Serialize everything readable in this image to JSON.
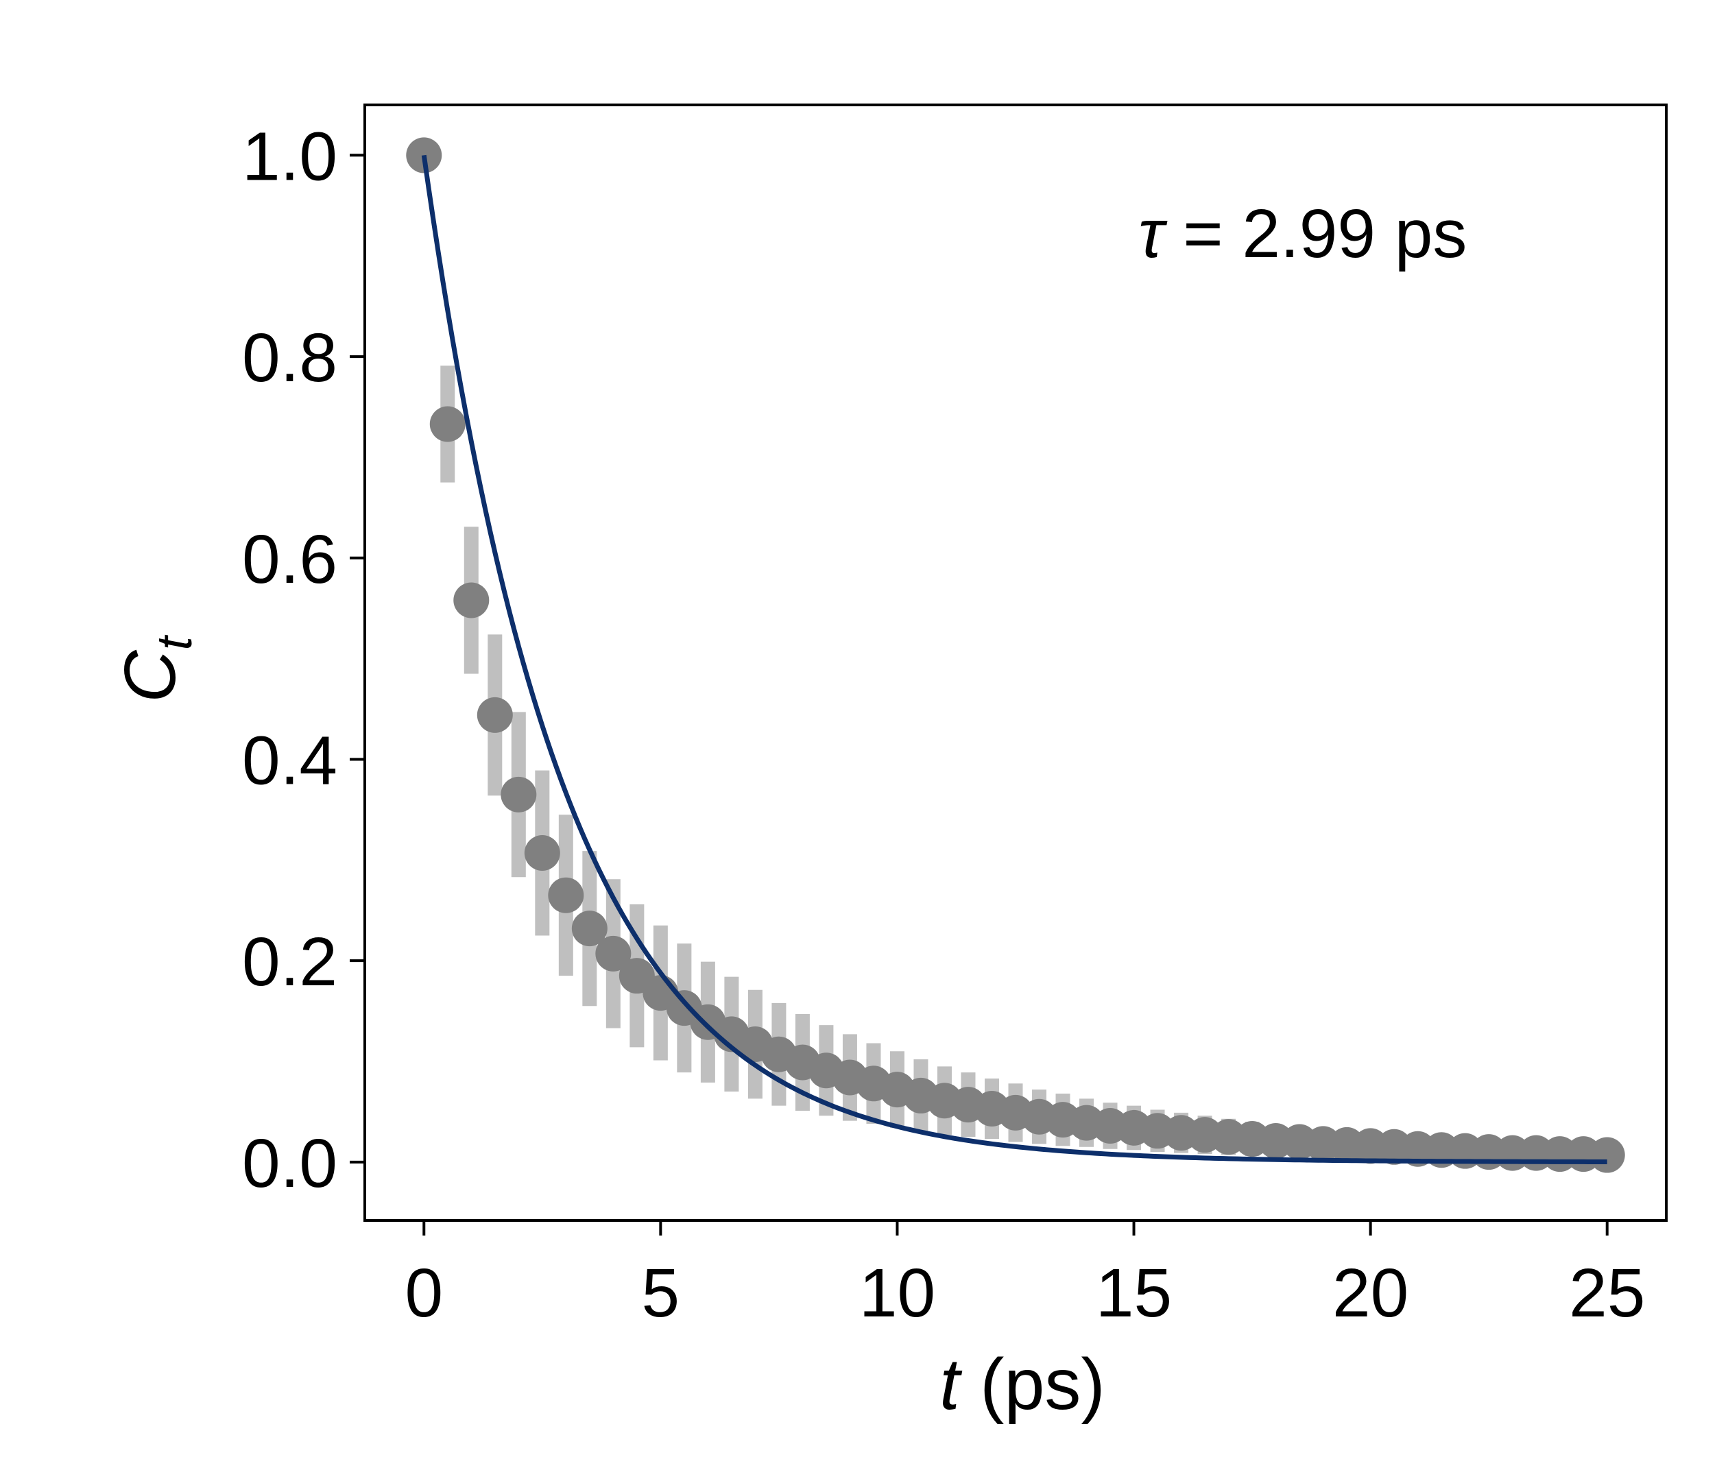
{
  "chart_data": {
    "type": "scatter",
    "xlabel": {
      "var": "t",
      "unit": " (ps)"
    },
    "ylabel": {
      "base": "C",
      "sub": "t"
    },
    "annotation": {
      "symbol": "τ",
      "text": " = 2.99 ps"
    },
    "xlim": [
      -1.25,
      26.25
    ],
    "ylim": [
      -0.058,
      1.05
    ],
    "xticks": [
      0,
      5,
      10,
      15,
      20,
      25
    ],
    "yticks": [
      0.0,
      0.2,
      0.4,
      0.6,
      0.8,
      1.0
    ],
    "xtick_labels": [
      "0",
      "5",
      "10",
      "15",
      "20",
      "25"
    ],
    "ytick_labels": [
      "0.0",
      "0.2",
      "0.4",
      "0.6",
      "0.8",
      "1.0"
    ],
    "grid": false,
    "points": {
      "x": [
        0,
        0.5,
        1,
        1.5,
        2,
        2.5,
        3,
        3.5,
        4,
        4.5,
        5,
        5.5,
        6,
        6.5,
        7,
        7.5,
        8,
        8.5,
        9,
        9.5,
        10,
        10.5,
        11,
        11.5,
        12,
        12.5,
        13,
        13.5,
        14,
        14.5,
        15,
        15.5,
        16,
        16.5,
        17,
        17.5,
        18,
        18.5,
        19,
        19.5,
        20,
        20.5,
        21,
        21.5,
        22,
        22.5,
        23,
        23.5,
        24,
        24.5,
        25
      ],
      "y": [
        1.0,
        0.733,
        0.558,
        0.444,
        0.365,
        0.307,
        0.265,
        0.232,
        0.207,
        0.185,
        0.168,
        0.153,
        0.139,
        0.127,
        0.117,
        0.107,
        0.099,
        0.091,
        0.084,
        0.078,
        0.072,
        0.066,
        0.061,
        0.057,
        0.053,
        0.049,
        0.045,
        0.042,
        0.039,
        0.036,
        0.034,
        0.031,
        0.029,
        0.027,
        0.025,
        0.023,
        0.021,
        0.02,
        0.018,
        0.017,
        0.016,
        0.015,
        0.013,
        0.012,
        0.011,
        0.01,
        0.009,
        0.009,
        0.008,
        0.008,
        0.007
      ],
      "err": [
        0.0,
        0.058,
        0.073,
        0.08,
        0.082,
        0.082,
        0.08,
        0.077,
        0.074,
        0.071,
        0.067,
        0.064,
        0.06,
        0.057,
        0.054,
        0.051,
        0.048,
        0.045,
        0.043,
        0.04,
        0.038,
        0.036,
        0.034,
        0.032,
        0.03,
        0.029,
        0.027,
        0.026,
        0.024,
        0.023,
        0.022,
        0.021,
        0.02,
        0.019,
        0.018,
        0.017,
        0.016,
        0.015,
        0.014,
        0.013,
        0.013,
        0.012,
        0.011,
        0.011,
        0.01,
        0.01,
        0.009,
        0.009,
        0.008,
        0.008,
        0.007
      ],
      "marker_color": "#808080",
      "errorbar_color": "#bfbfbf"
    },
    "fit": {
      "model": "exponential",
      "tau": 2.99,
      "x_range": [
        0,
        25
      ],
      "color": "#0d2f6b"
    }
  }
}
